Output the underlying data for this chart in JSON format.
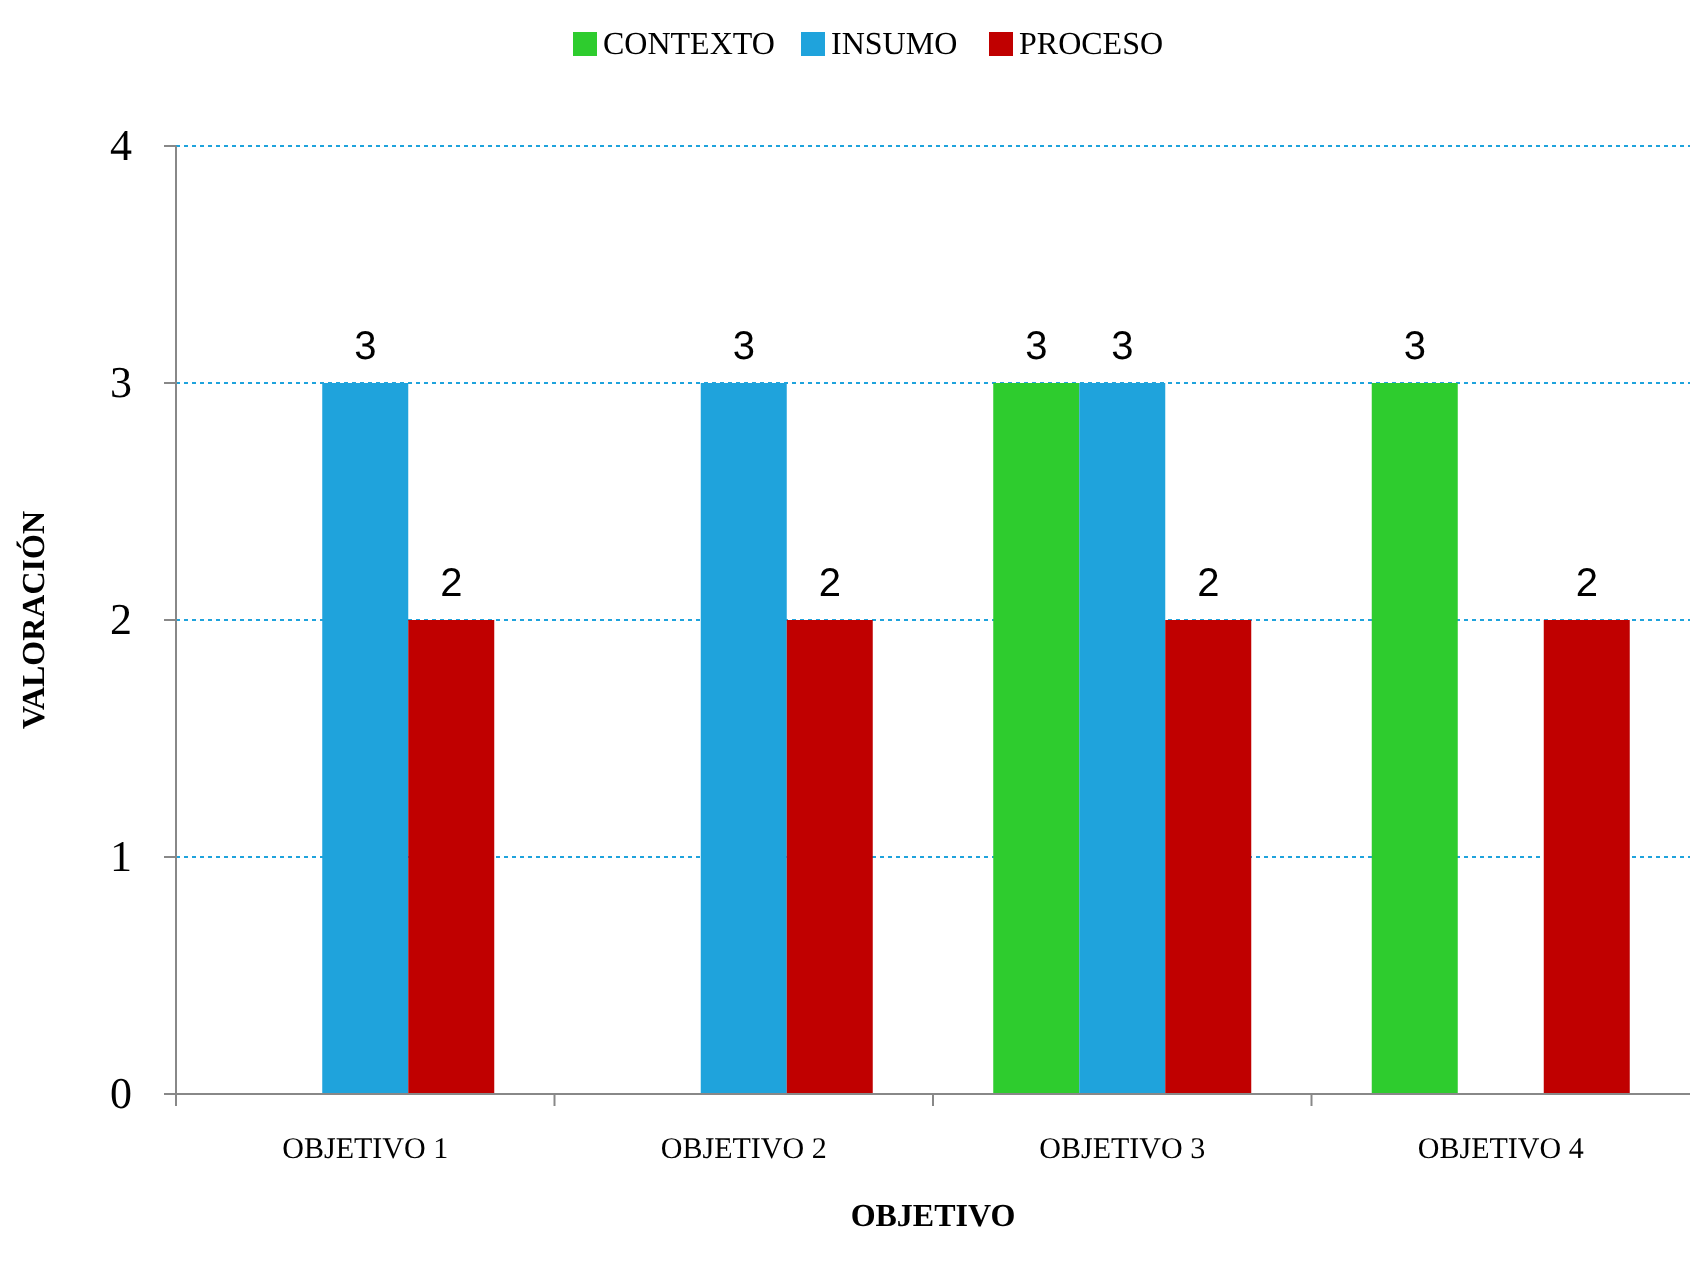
{
  "chart_data": {
    "type": "bar",
    "xlabel": "OBJETIVO",
    "ylabel": "VALORACIÓN",
    "categories": [
      "OBJETIVO 1",
      "OBJETIVO 2",
      "OBJETIVO 3",
      "OBJETIVO 4"
    ],
    "series": [
      {
        "name": "CONTEXTO",
        "color": "#2ecc2e",
        "values": [
          null,
          null,
          3,
          3
        ]
      },
      {
        "name": "INSUMO",
        "color": "#1fa3dc",
        "values": [
          3,
          3,
          3,
          null
        ]
      },
      {
        "name": "PROCESO",
        "color": "#c00000",
        "values": [
          2,
          2,
          2,
          2
        ]
      }
    ],
    "ylim": [
      0,
      4
    ],
    "yticks": [
      0,
      1,
      2,
      3,
      4
    ],
    "grid": "y",
    "legend": "top",
    "data_labels": true,
    "line_style": "dotted"
  }
}
